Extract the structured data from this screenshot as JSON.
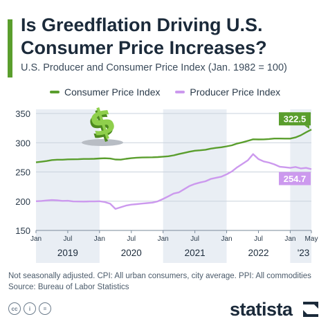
{
  "header": {
    "title": "Is Greedflation Driving U.S. Consumer Price Increases?",
    "subtitle": "U.S. Producer and Consumer Price Index (Jan. 1982 = 100)"
  },
  "colors": {
    "cpi": "#5a9e2d",
    "ppi": "#cc99ee",
    "band": "#e9eef4",
    "accent_bar": "#5a9e2d"
  },
  "icons": {
    "illustration": "dollar-sign-icon",
    "license": [
      "cc-icon",
      "attribution-icon",
      "no-derivatives-icon"
    ],
    "brand": "statista-logo-icon"
  },
  "chart_data": {
    "type": "line",
    "x_unit": "month",
    "x": [
      "2019-01",
      "2019-02",
      "2019-03",
      "2019-04",
      "2019-05",
      "2019-06",
      "2019-07",
      "2019-08",
      "2019-09",
      "2019-10",
      "2019-11",
      "2019-12",
      "2020-01",
      "2020-02",
      "2020-03",
      "2020-04",
      "2020-05",
      "2020-06",
      "2020-07",
      "2020-08",
      "2020-09",
      "2020-10",
      "2020-11",
      "2020-12",
      "2021-01",
      "2021-02",
      "2021-03",
      "2021-04",
      "2021-05",
      "2021-06",
      "2021-07",
      "2021-08",
      "2021-09",
      "2021-10",
      "2021-11",
      "2021-12",
      "2022-01",
      "2022-02",
      "2022-03",
      "2022-04",
      "2022-05",
      "2022-06",
      "2022-07",
      "2022-08",
      "2022-09",
      "2022-10",
      "2022-11",
      "2022-12",
      "2023-01",
      "2023-02",
      "2023-03",
      "2023-04",
      "2023-05"
    ],
    "series": [
      {
        "name": "Consumer Price Index",
        "color": "#5a9e2d",
        "values": [
          266.5,
          267.5,
          268.7,
          270.3,
          270.9,
          271.0,
          271.5,
          271.6,
          271.8,
          272.2,
          272.3,
          272.5,
          273.1,
          273.4,
          272.9,
          271.3,
          271.1,
          272.5,
          273.6,
          274.4,
          274.7,
          275.0,
          275.1,
          275.5,
          276.2,
          276.9,
          278.4,
          280.7,
          282.7,
          284.7,
          286.3,
          287.1,
          288.0,
          289.9,
          291.2,
          292.3,
          293.8,
          295.6,
          298.6,
          300.6,
          303.3,
          305.9,
          305.6,
          305.7,
          306.3,
          307.2,
          307.2,
          307.0,
          307.1,
          309.0,
          312.7,
          317.8,
          322.5
        ]
      },
      {
        "name": "Producer Price Index",
        "color": "#cc99ee",
        "values": [
          199.9,
          200.4,
          201.2,
          201.9,
          201.5,
          200.5,
          200.8,
          199.6,
          199.5,
          199.4,
          199.6,
          199.6,
          199.9,
          198.5,
          195.7,
          186.8,
          189.6,
          192.5,
          194.1,
          195.0,
          195.9,
          196.8,
          197.6,
          199.8,
          203.8,
          208.3,
          213.1,
          215.2,
          220.6,
          226.1,
          229.5,
          232.0,
          234.0,
          238.0,
          240.0,
          242.0,
          246.0,
          251.0,
          258.0,
          264.0,
          270.0,
          280.5,
          272.0,
          268.0,
          266.0,
          263.0,
          259.0,
          258.0,
          257.0,
          258.5,
          256.0,
          257.0,
          254.7
        ]
      }
    ],
    "ylim": [
      150,
      350
    ],
    "yticks": [
      150,
      200,
      250,
      300,
      350
    ],
    "xtick_labels": [
      "Jan",
      "Jul",
      "Jan",
      "Jul",
      "Jan",
      "Jul",
      "Jan",
      "Jul",
      "Jan",
      "May"
    ],
    "year_labels": [
      "2019",
      "2020",
      "2021",
      "2022",
      "'23"
    ],
    "end_labels": {
      "cpi": "322.5",
      "ppi": "254.7"
    },
    "grid": true,
    "legend_position": "top-left"
  },
  "footer": {
    "note": "Not seasonally adjusted. CPI: All urban consumers, city average. PPI: All commodities",
    "source": "Source: Bureau of Labor Statistics",
    "license": [
      "cc",
      "i",
      "="
    ],
    "brand": "statista"
  }
}
